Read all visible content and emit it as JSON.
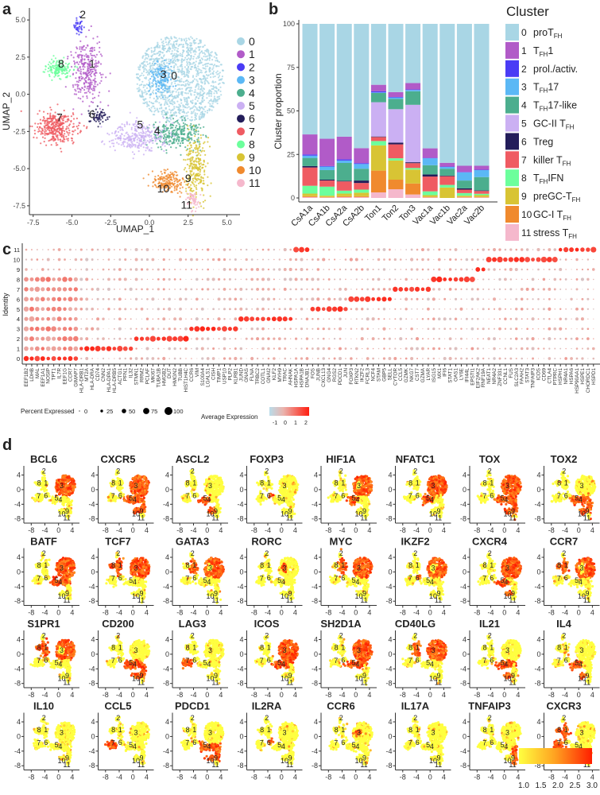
{
  "panels": {
    "a": "a",
    "b": "b",
    "c": "c",
    "d": "d"
  },
  "cluster_colors": [
    "#a9d6e5",
    "#b15bc8",
    "#4a3cf5",
    "#5bb8f5",
    "#4cae8e",
    "#cbb0f3",
    "#231d5a",
    "#ef5b62",
    "#6cff9c",
    "#d8c434",
    "#f08a2e",
    "#f5b8cc"
  ],
  "chart_data": [
    {
      "type": "scatter",
      "panel": "a",
      "xlabel": "UMAP_1",
      "ylabel": "UMAP_2",
      "xticks": [
        "-7.5",
        "-5.0",
        "-2.5",
        "0.0",
        "2.5",
        "5.0"
      ],
      "yticks": [
        "5.0",
        "2.5",
        "0.0",
        "-2.5",
        "-5.0",
        "-7.5"
      ],
      "xlim": [
        -8,
        5.8
      ],
      "ylim": [
        -8,
        5.5
      ],
      "legend": [
        "0",
        "1",
        "2",
        "3",
        "4",
        "5",
        "6",
        "7",
        "8",
        "9",
        "10",
        "11"
      ],
      "legend_position": "right",
      "clusters": [
        {
          "id": "0",
          "center": [
            2.0,
            1.0
          ],
          "spread": [
            1.5,
            1.3
          ],
          "n": 1600,
          "label_at": [
            1.6,
            1.0
          ]
        },
        {
          "id": "1",
          "center": [
            -4.0,
            1.5
          ],
          "spread": [
            0.5,
            1.0
          ],
          "n": 300,
          "label_at": [
            -3.7,
            1.8
          ]
        },
        {
          "id": "2",
          "center": [
            -4.6,
            4.6
          ],
          "spread": [
            0.15,
            0.3
          ],
          "n": 40,
          "label_at": [
            -4.3,
            5.1
          ]
        },
        {
          "id": "3",
          "center": [
            0.8,
            1.0
          ],
          "spread": [
            0.4,
            0.5
          ],
          "n": 150,
          "label_at": [
            0.9,
            1.1
          ]
        },
        {
          "id": "4",
          "center": [
            1.8,
            -2.7
          ],
          "spread": [
            0.8,
            0.5
          ],
          "n": 280,
          "label_at": [
            0.5,
            -2.7
          ]
        },
        {
          "id": "5",
          "center": [
            -0.8,
            -2.8
          ],
          "spread": [
            0.9,
            0.5
          ],
          "n": 300,
          "label_at": [
            -0.6,
            -2.3
          ]
        },
        {
          "id": "6",
          "center": [
            -3.3,
            -1.5
          ],
          "spread": [
            0.3,
            0.25
          ],
          "n": 60,
          "label_at": [
            -3.7,
            -1.6
          ]
        },
        {
          "id": "7",
          "center": [
            -6.0,
            -2.3
          ],
          "spread": [
            0.7,
            0.5
          ],
          "n": 350,
          "label_at": [
            -5.8,
            -1.8
          ]
        },
        {
          "id": "8",
          "center": [
            -5.9,
            1.7
          ],
          "spread": [
            0.4,
            0.3
          ],
          "n": 160,
          "label_at": [
            -5.7,
            1.8
          ]
        },
        {
          "id": "9",
          "center": [
            3.0,
            -5.0
          ],
          "spread": [
            0.35,
            1.1
          ],
          "n": 260,
          "label_at": [
            2.5,
            -5.9
          ]
        },
        {
          "id": "10",
          "center": [
            1.2,
            -5.9
          ],
          "spread": [
            0.5,
            0.35
          ],
          "n": 180,
          "label_at": [
            0.9,
            -6.6
          ]
        },
        {
          "id": "11",
          "center": [
            2.8,
            -7.1
          ],
          "spread": [
            0.2,
            0.3
          ],
          "n": 60,
          "label_at": [
            2.4,
            -7.7
          ]
        }
      ]
    },
    {
      "type": "bar",
      "stacked": true,
      "panel": "b",
      "ylabel": "Cluster proportion",
      "ylim": [
        0,
        100
      ],
      "yticks": [
        "0",
        "25",
        "50",
        "75",
        "100"
      ],
      "categories": [
        "CsA1a",
        "CsA1b",
        "CsA2a",
        "CsA2b",
        "Ton1",
        "Ton2",
        "Ton3",
        "Vac1a",
        "Vac1b",
        "Vac2a",
        "Vac2b"
      ],
      "legend_title": "Cluster",
      "legend_position": "right",
      "series": [
        {
          "num": "0",
          "name": "proT",
          "sub": "FH",
          "suffix": "",
          "values": [
            63.5,
            66,
            64.8,
            71.4,
            35,
            39.2,
            34,
            71.5,
            79.8,
            81.5,
            81.5
          ]
        },
        {
          "num": "1",
          "name": "T",
          "sub": "FH",
          "suffix": "1",
          "values": [
            11.5,
            15.7,
            13,
            8.6,
            3.7,
            2.8,
            3.7,
            5.5,
            2.2,
            3.6,
            2.3
          ]
        },
        {
          "num": "2",
          "name": "prol./activ.",
          "sub": "",
          "suffix": "",
          "values": [
            0.7,
            0.3,
            0.7,
            0.5,
            0.7,
            0.3,
            0.3,
            0.2,
            0.2,
            0.2,
            0.2
          ]
        },
        {
          "num": "3",
          "name": "T",
          "sub": "FH",
          "suffix": "17",
          "values": [
            1.3,
            2,
            1.4,
            2.7,
            0.3,
            0.8,
            0.7,
            4,
            1,
            4.7,
            4
          ]
        },
        {
          "num": "4",
          "name": "T",
          "sub": "FH",
          "suffix": "17-like",
          "values": [
            4.7,
            5.5,
            10.3,
            6.8,
            5.3,
            5.9,
            7.8,
            5.3,
            4,
            4.5,
            7.7
          ]
        },
        {
          "num": "5",
          "name": "GC-II T",
          "sub": "FH",
          "suffix": "",
          "values": [
            0,
            0,
            0,
            0,
            19.7,
            19.2,
            33,
            0,
            0,
            0,
            0
          ]
        },
        {
          "num": "6",
          "name": "Treg",
          "sub": "",
          "suffix": "",
          "values": [
            0.8,
            0.5,
            0.3,
            1.4,
            0.3,
            1,
            0.5,
            1.2,
            0.3,
            0.7,
            0.3
          ]
        },
        {
          "num": "7",
          "name": "killer T",
          "sub": "FH",
          "suffix": "",
          "values": [
            10.5,
            3.5,
            5.3,
            3.8,
            2.3,
            8,
            2.8,
            8.5,
            5,
            2,
            1.6
          ]
        },
        {
          "num": "8",
          "name": "T",
          "sub": "FH",
          "suffix": "IFN",
          "values": [
            4.5,
            5.2,
            1.7,
            1.8,
            2.5,
            1.3,
            0.9,
            2.2,
            1.5,
            1.5,
            0.8
          ]
        },
        {
          "num": "9",
          "name": "preGC-T",
          "sub": "FH",
          "suffix": "",
          "values": [
            1.5,
            0.8,
            1.5,
            2,
            14.5,
            11,
            8,
            1,
            6,
            0.7,
            1
          ]
        },
        {
          "num": "10",
          "name": "GC-I T",
          "sub": "FH",
          "suffix": "",
          "values": [
            0.5,
            0.2,
            0.5,
            0.5,
            12.5,
            5.5,
            6.3,
            0.3,
            0,
            0.3,
            0.3
          ]
        },
        {
          "num": "11",
          "name": "stress T",
          "sub": "FH",
          "suffix": "",
          "values": [
            0.5,
            0.3,
            0.5,
            0.5,
            3.2,
            5,
            2,
            0.3,
            0,
            0.3,
            0.3
          ]
        }
      ]
    },
    {
      "type": "dotplot",
      "panel": "c",
      "ylabel": "Identity",
      "rows": [
        "0",
        "1",
        "2",
        "3",
        "4",
        "5",
        "6",
        "7",
        "8",
        "9",
        "10",
        "11"
      ],
      "gene_groups": [
        {
          "marker_cluster": 0,
          "genes": [
            "EEF1B2",
            "LDHB",
            "MAL",
            "EEF1A1",
            "NOSIP",
            "TPT1",
            "IL7R",
            "EEF1G",
            "CCR7",
            "GIMAP7"
          ]
        },
        {
          "marker_cluster": 1,
          "genes": [
            "HLA-DRB1",
            "MT2A",
            "HLA-DRA",
            "CD74",
            "CNN2",
            "HLA-DPA1",
            "HLA-DRB5",
            "ACTG1",
            "PFN1",
            "IL32"
          ]
        },
        {
          "marker_cluster": 2,
          "genes": [
            "STMN1",
            "RRM2",
            "PCLAF",
            "MKI67",
            "TUBA1B",
            "HMGB2",
            "DUT",
            "HMGN2",
            "TUBB",
            "HIST1H4C"
          ]
        },
        {
          "marker_cluster": 3,
          "genes": [
            "CCR6",
            "VIM",
            "S100A4",
            "LGALS1",
            "CISH",
            "TIMP1",
            "USP10",
            "PLP2",
            "KLRB1"
          ]
        },
        {
          "marker_cluster": 4,
          "genes": [
            "JUND",
            "GNAS",
            "FLNA",
            "TRBC2",
            "COTL1",
            "GNAI2",
            "KLF2",
            "MYH9",
            "TRAC",
            "AHNAK"
          ]
        },
        {
          "marker_cluster": 11,
          "genes": [
            "HSPA1A",
            "HSPA1B",
            "DNAJB1"
          ]
        },
        {
          "marker_cluster": 5,
          "genes": [
            "FOS",
            "JUNB",
            "CXCL13",
            "GNG4",
            "RGS2",
            "PDCD1",
            "JUN"
          ]
        },
        {
          "marker_cluster": 6,
          "genes": [
            "FOXP3",
            "RTKN2",
            "IKZF2",
            "FCRL3",
            "NCF4",
            "STAM",
            "GBP5",
            "SELL"
          ]
        },
        {
          "marker_cluster": 7,
          "genes": [
            "CYTOR",
            "CCL5",
            "GZMK",
            "NKG7",
            "CST7",
            "GZMA",
            "LYAR"
          ]
        },
        {
          "marker_cluster": 8,
          "genes": [
            "ISG15",
            "MX1",
            "IFI6",
            "STAT1",
            "OAS1",
            "LY6E",
            "IFI44L",
            "EPSTI1"
          ]
        },
        {
          "marker_cluster": 9,
          "genes": [
            "EIF2AK2",
            "RNF19A"
          ]
        },
        {
          "marker_cluster": 10,
          "genes": [
            "NEAT1",
            "NR4A2",
            "ZNF331",
            "CCNL1",
            "FUS",
            "SLC2A3",
            "FAAH2",
            "STAT3",
            "TNFAIP3",
            "ICOS",
            "CD69",
            "CTLA4",
            "PTPRC"
          ]
        },
        {
          "marker_cluster": 11,
          "genes": [
            "HSPH1",
            "NR4A1",
            "HSPA6",
            "HSP90AA1",
            "HSPE1",
            "CHORDC1",
            "HSPD1"
          ]
        }
      ],
      "size_legend": {
        "title": "Percent Expressed",
        "values": [
          "0",
          "25",
          "50",
          "75",
          "100"
        ]
      },
      "color_legend": {
        "title": "Average Expression",
        "ticks": [
          "-1",
          "0",
          "1",
          "2"
        ],
        "range": [
          -1,
          2.3
        ]
      }
    },
    {
      "type": "scatter",
      "panel": "d",
      "subtype": "feature_plots",
      "xticks": [
        "-8",
        "-4",
        "0",
        "4"
      ],
      "yticks": [
        "4",
        "0",
        "-4",
        "-8"
      ],
      "color_scale": {
        "ticks": [
          "1.0",
          "1.5",
          "2.0",
          "2.5",
          "3.0"
        ],
        "range": [
          1.0,
          3.0
        ],
        "low": "#ffff40",
        "high": "#ff1e00"
      },
      "genes": [
        {
          "name": "BCL6",
          "high_clusters": [
            3,
            0
          ]
        },
        {
          "name": "CXCR5",
          "high_clusters": [
            0,
            3,
            4,
            5,
            9,
            10
          ]
        },
        {
          "name": "ASCL2",
          "high_clusters": [
            5,
            10
          ]
        },
        {
          "name": "FOXP3",
          "high_clusters": [
            6
          ]
        },
        {
          "name": "HIF1A",
          "high_clusters": [
            0,
            5
          ]
        },
        {
          "name": "NFATC1",
          "high_clusters": [
            0,
            3,
            5
          ]
        },
        {
          "name": "TOX",
          "high_clusters": [
            0,
            3,
            4,
            5,
            9,
            10
          ]
        },
        {
          "name": "TOX2",
          "high_clusters": [
            4,
            5,
            9,
            10
          ]
        },
        {
          "name": "BATF",
          "high_clusters": [
            0,
            3,
            4,
            5
          ]
        },
        {
          "name": "TCF7",
          "high_clusters": [
            0,
            1,
            3,
            8
          ]
        },
        {
          "name": "GATA3",
          "high_clusters": [
            1,
            0
          ]
        },
        {
          "name": "RORC",
          "high_clusters": [
            3
          ]
        },
        {
          "name": "MYC",
          "high_clusters": [
            0,
            1,
            3
          ]
        },
        {
          "name": "IKZF2",
          "high_clusters": [
            6,
            0
          ]
        },
        {
          "name": "CXCR4",
          "high_clusters": [
            0,
            3,
            5,
            10
          ]
        },
        {
          "name": "CCR7",
          "high_clusters": [
            0,
            1,
            8
          ]
        },
        {
          "name": "S1PR1",
          "high_clusters": [
            0,
            1,
            8
          ]
        },
        {
          "name": "CD200",
          "high_clusters": [
            4,
            5,
            9,
            10
          ]
        },
        {
          "name": "LAG3",
          "high_clusters": [
            7
          ]
        },
        {
          "name": "ICOS",
          "high_clusters": [
            0,
            3,
            4,
            5
          ]
        },
        {
          "name": "SH2D1A",
          "high_clusters": [
            0,
            3,
            4,
            5
          ]
        },
        {
          "name": "CD40LG",
          "high_clusters": [
            0,
            1,
            3
          ]
        },
        {
          "name": "IL21",
          "high_clusters": [
            4,
            5,
            10
          ]
        },
        {
          "name": "IL4",
          "high_clusters": [
            5,
            10
          ]
        },
        {
          "name": "IL10",
          "high_clusters": []
        },
        {
          "name": "CCL5",
          "high_clusters": [
            7
          ]
        },
        {
          "name": "PDCD1",
          "high_clusters": [
            4,
            5,
            9,
            10
          ]
        },
        {
          "name": "IL2RA",
          "high_clusters": [
            6
          ]
        },
        {
          "name": "CCR6",
          "high_clusters": [
            3
          ]
        },
        {
          "name": "IL17A",
          "high_clusters": []
        },
        {
          "name": "TNFAIP3",
          "high_clusters": [
            9,
            11
          ]
        },
        {
          "name": "CXCR3",
          "high_clusters": [
            1,
            7,
            8
          ]
        }
      ]
    }
  ]
}
